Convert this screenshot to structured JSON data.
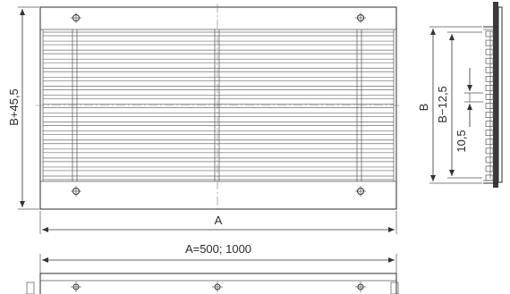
{
  "dimensions": {
    "height_outer": "B+45,5",
    "width_a": "A",
    "width_options": "A=500; 1000",
    "side_b": "B",
    "side_inner": "B−12,5",
    "slat_pitch": "10,5"
  }
}
